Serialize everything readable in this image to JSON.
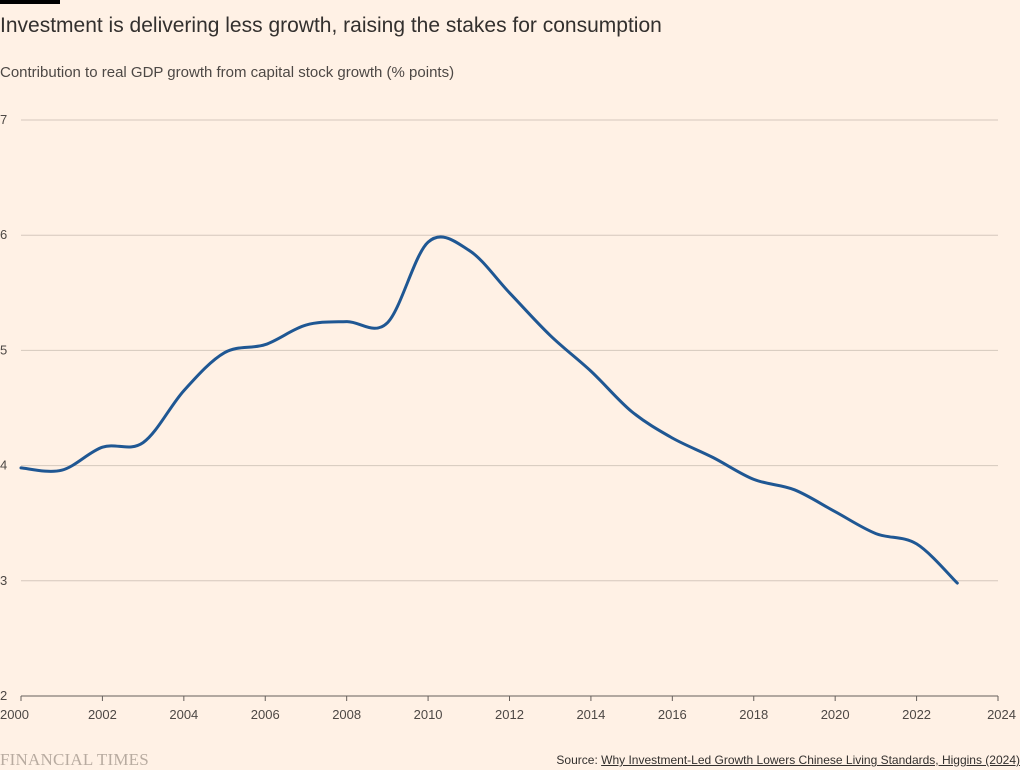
{
  "header": {
    "title": "Investment is delivering less growth, raising the stakes for consumption",
    "subtitle": "Contribution to real GDP growth from capital stock growth (% points)"
  },
  "footer": {
    "logo_text": "FINANCIAL TIMES",
    "source_label": "Source: ",
    "source_link": "Why Investment-Led Growth Lowers Chinese Living Standards, Higgins (2024)"
  },
  "colors": {
    "background": "#fff1e5",
    "line": "#1f5793",
    "grid": "#d5c8bd",
    "axis": "#66605c"
  },
  "chart_data": {
    "type": "line",
    "title": "Investment is delivering less growth, raising the stakes for consumption",
    "subtitle": "Contribution to real GDP growth from capital stock growth (% points)",
    "xlabel": "",
    "ylabel": "",
    "xlim": [
      2000,
      2024
    ],
    "ylim": [
      2,
      7
    ],
    "x_ticks": [
      "2000",
      "2002",
      "2004",
      "2006",
      "2008",
      "2010",
      "2012",
      "2014",
      "2016",
      "2018",
      "2020",
      "2022",
      "2024"
    ],
    "y_ticks": [
      "2",
      "3",
      "4",
      "5",
      "6",
      "7"
    ],
    "grid": true,
    "series": [
      {
        "x": [
          2000,
          2001,
          2002,
          2003,
          2004,
          2005,
          2006,
          2007,
          2008,
          2009,
          2010,
          2011,
          2012,
          2013,
          2014,
          2015,
          2016,
          2017,
          2018,
          2019,
          2020,
          2021,
          2022,
          2023
        ],
        "values": [
          3.98,
          3.96,
          4.16,
          4.2,
          4.65,
          4.98,
          5.05,
          5.22,
          5.25,
          5.24,
          5.94,
          5.87,
          5.5,
          5.13,
          4.82,
          4.47,
          4.24,
          4.07,
          3.88,
          3.79,
          3.6,
          3.41,
          3.32,
          2.98
        ]
      }
    ]
  }
}
